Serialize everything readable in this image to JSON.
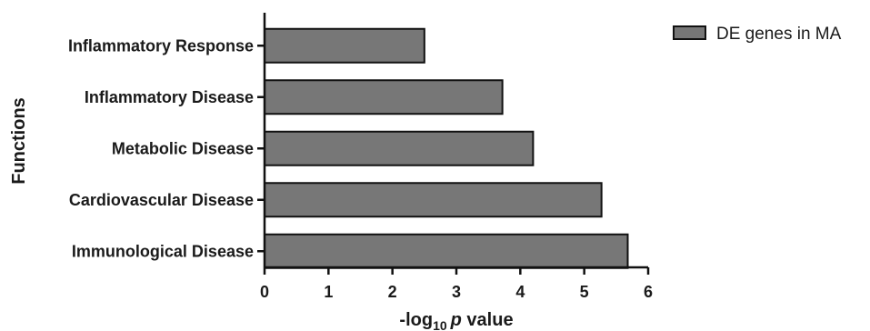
{
  "chart_data": {
    "type": "bar",
    "orientation": "horizontal",
    "categories": [
      "Inflammatory Response",
      "Inflammatory Disease",
      "Metabolic Disease",
      "Cardiovascular Disease",
      "Immunological Disease"
    ],
    "series": [
      {
        "name": "DE genes in MA",
        "values": [
          2.5,
          3.72,
          4.2,
          5.27,
          5.68
        ]
      }
    ],
    "xlabel": {
      "prefix": "-log",
      "sub": "10",
      "italic": "p",
      "suffix": " value"
    },
    "ylabel": "Functions",
    "xlim": [
      0,
      6
    ],
    "xticks": [
      "0",
      "1",
      "2",
      "3",
      "4",
      "5",
      "6"
    ],
    "grid": false,
    "legend_position": "top-right",
    "colors": {
      "bar": "#777777",
      "stroke": "#111111"
    }
  }
}
